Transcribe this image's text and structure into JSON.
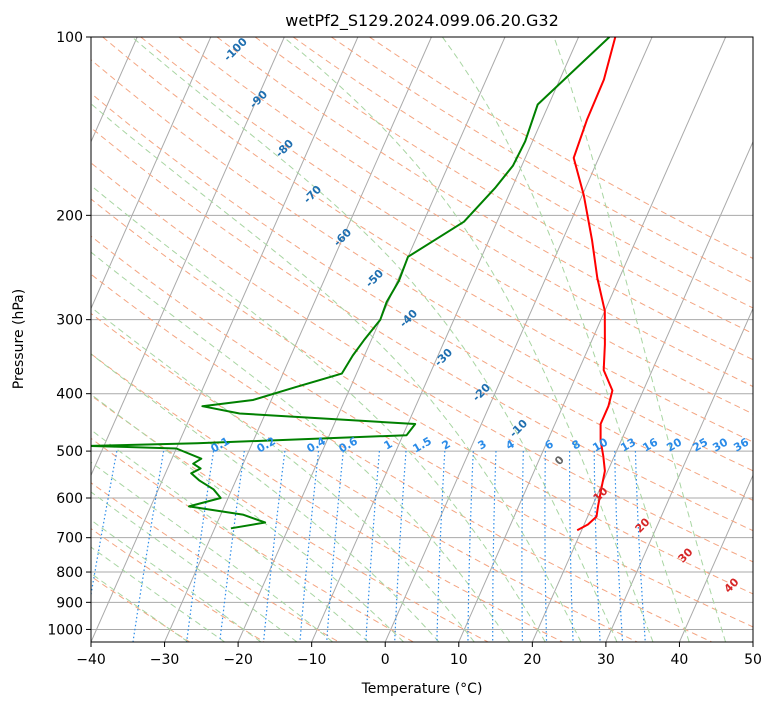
{
  "chart_data": {
    "type": "line",
    "title": "wetPf2_S129.2024.099.06.20.G32",
    "xlabel": "Temperature (°C)",
    "ylabel": "Pressure (hPa)",
    "xlim": [
      -40,
      50
    ],
    "ylim": [
      1050,
      100
    ],
    "y_scale": "log",
    "x_ticks": [
      -40,
      -30,
      -20,
      -10,
      0,
      10,
      20,
      30,
      40,
      50
    ],
    "y_ticks": [
      100,
      200,
      300,
      400,
      500,
      600,
      700,
      800,
      900,
      1000
    ],
    "grid": true,
    "skew_labels": [
      "-100",
      "-90",
      "-80",
      "-70",
      "-60",
      "-50",
      "-40",
      "-30",
      "-20",
      "-10",
      "0",
      "10",
      "20",
      "30",
      "40"
    ],
    "mixing_ratio_labels": [
      "0.1",
      "0.2",
      "0.4",
      "0.6",
      "1",
      "1.5",
      "2",
      "3",
      "4",
      "6",
      "8",
      "10",
      "13",
      "16",
      "20",
      "25",
      "30",
      "36"
    ],
    "colors": {
      "temperature": "#ff0000",
      "dewpoint": "#008000",
      "isotherm": "#aaaaaa",
      "dry_adiabat": "#f4a582",
      "moist_adiabat": "#a8d5a2",
      "mixing_ratio": "#2a8be8",
      "skew_label": "#1f6fb0",
      "skew_label_warm": "#d62728"
    },
    "series": [
      {
        "key": "temperature",
        "points": [
          [
            -5.0,
            100
          ],
          [
            -4.0,
            118
          ],
          [
            -3.9,
            138
          ],
          [
            -3.4,
            160
          ],
          [
            0.2,
            185
          ],
          [
            4.0,
            220
          ],
          [
            7.0,
            255
          ],
          [
            10.0,
            290
          ],
          [
            12.0,
            330
          ],
          [
            13.4,
            365
          ],
          [
            15.8,
            395
          ],
          [
            16.2,
            420
          ],
          [
            16.2,
            450
          ],
          [
            17.2,
            480
          ],
          [
            18.5,
            510
          ],
          [
            19.6,
            540
          ],
          [
            20.2,
            580
          ],
          [
            20.8,
            620
          ],
          [
            21.2,
            645
          ],
          [
            20.5,
            665
          ],
          [
            19.4,
            680
          ]
        ]
      },
      {
        "key": "dewpoint",
        "points": [
          [
            -5.8,
            100
          ],
          [
            -11.5,
            130
          ],
          [
            -11.0,
            150
          ],
          [
            -11.2,
            165
          ],
          [
            -12.3,
            180
          ],
          [
            -14.5,
            205
          ],
          [
            -20.0,
            235
          ],
          [
            -19.8,
            258
          ],
          [
            -20.2,
            280
          ],
          [
            -20.0,
            300
          ],
          [
            -21.0,
            325
          ],
          [
            -21.6,
            345
          ],
          [
            -22.0,
            370
          ],
          [
            -27.5,
            390
          ],
          [
            -32.5,
            410
          ],
          [
            -39.0,
            420
          ],
          [
            -33.5,
            432
          ],
          [
            -9.0,
            450
          ],
          [
            -9.5,
            470
          ],
          [
            -37.5,
            485
          ],
          [
            -52.0,
            490
          ],
          [
            -40.0,
            495
          ],
          [
            -36.0,
            515
          ],
          [
            -36.8,
            525
          ],
          [
            -35.5,
            535
          ],
          [
            -36.5,
            545
          ],
          [
            -35.0,
            560
          ],
          [
            -32.5,
            580
          ],
          [
            -31.0,
            600
          ],
          [
            -34.8,
            620
          ],
          [
            -27.0,
            640
          ],
          [
            -23.5,
            660
          ],
          [
            -27.8,
            675
          ]
        ]
      }
    ]
  }
}
